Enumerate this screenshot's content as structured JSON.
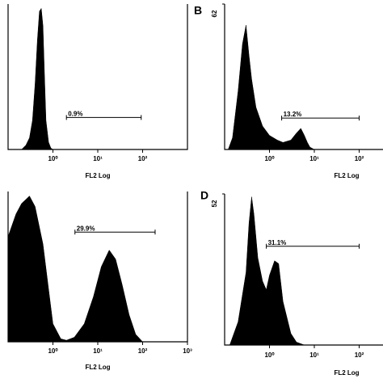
{
  "chart_data": [
    {
      "type": "histogram",
      "xlabel": "FL2 Log",
      "xscale": "log",
      "xlim": [
        0.1,
        1000
      ],
      "ylim": [
        0,
        100
      ],
      "xticks": [
        {
          "value": 1,
          "label": "10⁰"
        },
        {
          "value": 10,
          "label": "10¹"
        },
        {
          "value": 100,
          "label": "10²"
        }
      ],
      "x": [
        0.2,
        0.25,
        0.3,
        0.35,
        0.4,
        0.45,
        0.5,
        0.55,
        0.6,
        0.65,
        0.7,
        0.8,
        0.9,
        1.0
      ],
      "values": [
        0,
        3,
        8,
        20,
        45,
        75,
        95,
        97,
        85,
        50,
        20,
        5,
        1,
        0
      ],
      "color": "#000000",
      "gate": {
        "x": [
          2,
          93
        ],
        "y": 22,
        "label": "0.9%"
      }
    },
    {
      "type": "histogram",
      "panel": "B",
      "xlabel": "FL2 Log",
      "xscale": "log",
      "xlim": [
        0.1,
        1000
      ],
      "ylim": [
        0,
        62
      ],
      "yticks": [
        62
      ],
      "xticks": [
        {
          "value": 1,
          "label": "10⁰"
        },
        {
          "value": 10,
          "label": "10¹"
        },
        {
          "value": 100,
          "label": "10²"
        }
      ],
      "x": [
        0.12,
        0.15,
        0.2,
        0.25,
        0.3,
        0.35,
        0.4,
        0.5,
        0.7,
        1,
        1.5,
        2,
        3,
        4,
        5,
        6,
        7,
        8,
        10
      ],
      "values": [
        0,
        5,
        25,
        45,
        53,
        40,
        30,
        18,
        10,
        6,
        4,
        3,
        4,
        7,
        9,
        6,
        3,
        1,
        0
      ],
      "color": "#000000",
      "gate": {
        "x": [
          1.87,
          100
        ],
        "y": 13.4,
        "label": "13.2%"
      }
    },
    {
      "type": "histogram",
      "xlabel": "FL2 Log",
      "xscale": "log",
      "xlim": [
        0.1,
        1000
      ],
      "ylim": [
        0,
        100
      ],
      "xticks": [
        {
          "value": 1,
          "label": "10⁰"
        },
        {
          "value": 10,
          "label": "10¹"
        },
        {
          "value": 100,
          "label": "10²"
        },
        {
          "value": 1000,
          "label": "10³"
        }
      ],
      "x": [
        0.1,
        0.15,
        0.2,
        0.3,
        0.4,
        0.6,
        0.8,
        1,
        1.5,
        2,
        3,
        5,
        8,
        12,
        18,
        25,
        35,
        50,
        70,
        100
      ],
      "values": [
        70,
        85,
        92,
        97,
        90,
        65,
        35,
        12,
        2,
        1,
        3,
        12,
        30,
        50,
        61,
        55,
        38,
        18,
        5,
        0
      ],
      "color": "#000000",
      "gate": {
        "x": [
          3.1,
          190
        ],
        "y": 73,
        "label": "29.9%"
      }
    },
    {
      "type": "histogram",
      "panel": "D",
      "xlabel": "FL2 Log",
      "xscale": "log",
      "xlim": [
        0.1,
        1000
      ],
      "ylim": [
        0,
        52
      ],
      "yticks": [
        52
      ],
      "xticks": [
        {
          "value": 1,
          "label": "10⁰"
        },
        {
          "value": 10,
          "label": "10¹"
        },
        {
          "value": 100,
          "label": "10²"
        }
      ],
      "x": [
        0.13,
        0.2,
        0.3,
        0.35,
        0.4,
        0.45,
        0.55,
        0.7,
        0.85,
        1,
        1.3,
        1.6,
        2,
        3,
        4,
        6
      ],
      "values": [
        0,
        8,
        25,
        42,
        51,
        45,
        30,
        22,
        19,
        24,
        29,
        28,
        15,
        4,
        1,
        0
      ],
      "color": "#000000",
      "gate": {
        "x": [
          0.85,
          100
        ],
        "y": 34,
        "label": "31.1%"
      }
    }
  ]
}
